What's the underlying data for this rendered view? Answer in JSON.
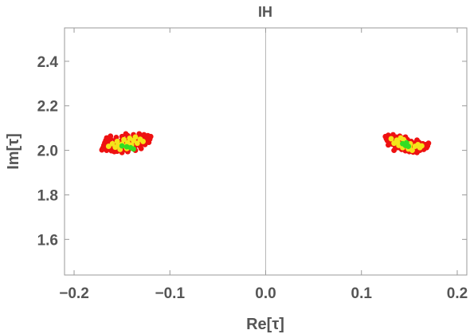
{
  "chart_data": {
    "type": "scatter",
    "title": "IH",
    "xlabel": "Re[τ]",
    "ylabel": "Im[τ]",
    "xlim": [
      -0.21,
      0.21
    ],
    "ylim": [
      1.44,
      2.55
    ],
    "xticks": [
      -0.2,
      -0.1,
      0.0,
      0.1,
      0.2
    ],
    "xtick_labels": [
      "−0.2",
      "−0.1",
      "0.0",
      "0.1",
      "0.2"
    ],
    "yticks": [
      1.6,
      1.8,
      2.0,
      2.2,
      2.4
    ],
    "ytick_labels": [
      "1.6",
      "1.8",
      "2.0",
      "2.2",
      "2.4"
    ],
    "grid": false,
    "zero_line_x": 0.0,
    "series": [
      {
        "color": "#ee1111",
        "points": [
          [
            -0.171,
            2.002
          ],
          [
            -0.17,
            2.01
          ],
          [
            -0.169,
            2.022
          ],
          [
            -0.168,
            2.034
          ],
          [
            -0.167,
            2.044
          ],
          [
            -0.166,
            2.0
          ],
          [
            -0.165,
            2.014
          ],
          [
            -0.164,
            2.028
          ],
          [
            -0.163,
            2.04
          ],
          [
            -0.162,
            2.052
          ],
          [
            -0.161,
            1.998
          ],
          [
            -0.16,
            2.008
          ],
          [
            -0.159,
            2.02
          ],
          [
            -0.158,
            2.032
          ],
          [
            -0.157,
            2.046
          ],
          [
            -0.156,
            2.058
          ],
          [
            -0.155,
            1.996
          ],
          [
            -0.154,
            2.006
          ],
          [
            -0.153,
            2.018
          ],
          [
            -0.152,
            2.03
          ],
          [
            -0.151,
            2.042
          ],
          [
            -0.15,
            2.062
          ],
          [
            -0.149,
            2.0
          ],
          [
            -0.148,
            2.012
          ],
          [
            -0.147,
            2.026
          ],
          [
            -0.146,
            2.038
          ],
          [
            -0.145,
            2.05
          ],
          [
            -0.144,
            2.066
          ],
          [
            -0.143,
            2.004
          ],
          [
            -0.142,
            2.016
          ],
          [
            -0.141,
            2.028
          ],
          [
            -0.14,
            2.044
          ],
          [
            -0.139,
            2.056
          ],
          [
            -0.138,
            2.07
          ],
          [
            -0.137,
            2.01
          ],
          [
            -0.136,
            2.022
          ],
          [
            -0.135,
            2.036
          ],
          [
            -0.134,
            2.048
          ],
          [
            -0.133,
            2.062
          ],
          [
            -0.132,
            2.074
          ],
          [
            -0.131,
            2.018
          ],
          [
            -0.13,
            2.03
          ],
          [
            -0.129,
            2.044
          ],
          [
            -0.128,
            2.058
          ],
          [
            -0.127,
            2.07
          ],
          [
            -0.126,
            2.026
          ],
          [
            -0.125,
            2.04
          ],
          [
            -0.124,
            2.054
          ],
          [
            -0.123,
            2.066
          ],
          [
            -0.122,
            2.036
          ],
          [
            -0.121,
            2.05
          ],
          [
            -0.12,
            2.062
          ],
          [
            -0.162,
            2.064
          ],
          [
            -0.158,
            1.994
          ],
          [
            -0.15,
            1.99
          ],
          [
            -0.144,
            1.994
          ],
          [
            -0.136,
            2.0
          ],
          [
            -0.13,
            2.008
          ],
          [
            -0.166,
            2.056
          ],
          [
            -0.146,
            2.074
          ],
          [
            0.125,
            2.062
          ],
          [
            0.126,
            2.052
          ],
          [
            0.127,
            2.044
          ],
          [
            0.128,
            2.068
          ],
          [
            0.129,
            2.036
          ],
          [
            0.13,
            2.058
          ],
          [
            0.131,
            2.048
          ],
          [
            0.132,
            2.028
          ],
          [
            0.133,
            2.07
          ],
          [
            0.134,
            2.04
          ],
          [
            0.135,
            2.02
          ],
          [
            0.136,
            2.06
          ],
          [
            0.137,
            2.05
          ],
          [
            0.138,
            2.012
          ],
          [
            0.139,
            2.032
          ],
          [
            0.14,
            2.064
          ],
          [
            0.141,
            2.044
          ],
          [
            0.142,
            2.004
          ],
          [
            0.143,
            2.024
          ],
          [
            0.144,
            2.056
          ],
          [
            0.145,
            2.036
          ],
          [
            0.146,
            1.998
          ],
          [
            0.147,
            2.016
          ],
          [
            0.148,
            2.048
          ],
          [
            0.149,
            2.028
          ],
          [
            0.15,
            1.994
          ],
          [
            0.151,
            2.008
          ],
          [
            0.152,
            2.04
          ],
          [
            0.153,
            2.02
          ],
          [
            0.154,
            1.992
          ],
          [
            0.155,
            2.032
          ],
          [
            0.156,
            2.004
          ],
          [
            0.157,
            2.024
          ],
          [
            0.158,
            1.99
          ],
          [
            0.159,
            2.014
          ],
          [
            0.16,
            2.036
          ],
          [
            0.161,
            2.0
          ],
          [
            0.162,
            2.022
          ],
          [
            0.163,
            2.01
          ],
          [
            0.164,
            2.03
          ],
          [
            0.165,
            2.004
          ],
          [
            0.166,
            2.018
          ],
          [
            0.167,
            2.026
          ],
          [
            0.168,
            2.012
          ],
          [
            0.169,
            2.02
          ],
          [
            0.17,
            2.032
          ],
          [
            0.158,
            2.046
          ],
          [
            0.134,
            2.0
          ],
          [
            0.128,
            2.024
          ],
          [
            0.146,
            2.06
          ]
        ]
      },
      {
        "color": "#f4e41a",
        "points": [
          [
            -0.164,
            2.018
          ],
          [
            -0.16,
            2.03
          ],
          [
            -0.157,
            2.014
          ],
          [
            -0.155,
            2.04
          ],
          [
            -0.152,
            2.004
          ],
          [
            -0.15,
            2.028
          ],
          [
            -0.148,
            2.048
          ],
          [
            -0.146,
            2.018
          ],
          [
            -0.144,
            2.034
          ],
          [
            -0.142,
            2.054
          ],
          [
            -0.14,
            2.024
          ],
          [
            -0.138,
            2.044
          ],
          [
            -0.136,
            2.06
          ],
          [
            -0.134,
            2.032
          ],
          [
            -0.131,
            2.05
          ],
          [
            -0.128,
            2.04
          ],
          [
            -0.154,
            2.024
          ],
          [
            -0.145,
            2.008
          ],
          [
            0.131,
            2.052
          ],
          [
            0.134,
            2.032
          ],
          [
            0.137,
            2.046
          ],
          [
            0.139,
            2.022
          ],
          [
            0.141,
            2.056
          ],
          [
            0.143,
            2.012
          ],
          [
            0.145,
            2.04
          ],
          [
            0.147,
            2.028
          ],
          [
            0.149,
            2.006
          ],
          [
            0.151,
            2.03
          ],
          [
            0.153,
            2.0
          ],
          [
            0.156,
            2.018
          ],
          [
            0.159,
            2.026
          ],
          [
            0.161,
            2.012
          ],
          [
            0.163,
            2.02
          ],
          [
            0.144,
            2.048
          ],
          [
            0.15,
            2.016
          ],
          [
            0.138,
            2.036
          ]
        ]
      },
      {
        "color": "#33dd22",
        "points": [
          [
            -0.15,
            2.02
          ],
          [
            -0.145,
            2.016
          ],
          [
            -0.141,
            2.012
          ],
          [
            -0.138,
            2.006
          ],
          [
            0.143,
            2.03
          ],
          [
            0.146,
            2.022
          ],
          [
            0.149,
            2.018
          ],
          [
            0.147,
            2.034
          ]
        ]
      }
    ]
  }
}
